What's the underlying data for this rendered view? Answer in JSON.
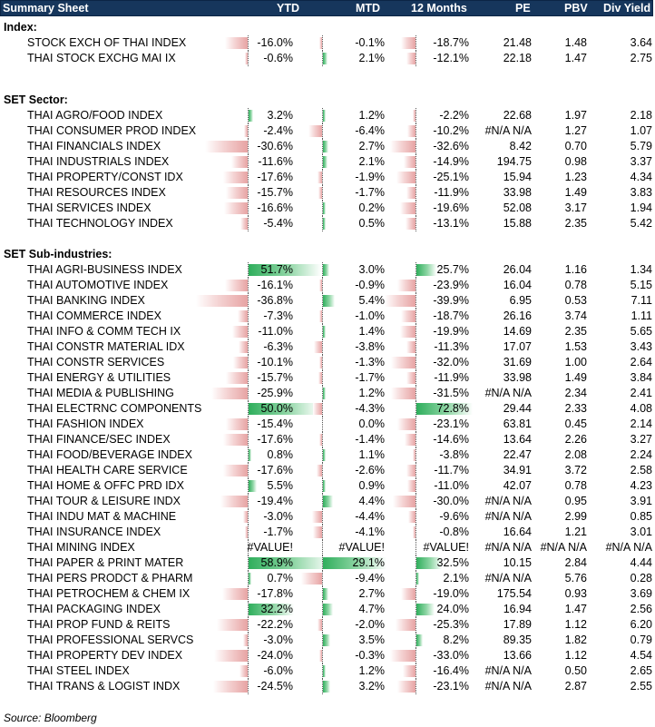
{
  "header": {
    "title": "Summary Sheet",
    "ytd": "YTD",
    "mtd": "MTD",
    "m12": "12 Months",
    "pe": "PE",
    "pbv": "PBV",
    "div": "Div Yield"
  },
  "sections": [
    {
      "title": "Index:",
      "rows": [
        {
          "name": "STOCK EXCH OF THAI INDEX",
          "ytd": "-16.0%",
          "ytd_v": -16.0,
          "mtd": "-0.1%",
          "mtd_v": -0.1,
          "m12": "-18.7%",
          "m12_v": -18.7,
          "pe": "21.48",
          "pbv": "1.48",
          "div": "3.64"
        },
        {
          "name": "THAI STOCK EXCHG MAI IX",
          "ytd": "-0.6%",
          "ytd_v": -0.6,
          "mtd": "2.1%",
          "mtd_v": 2.1,
          "m12": "-12.1%",
          "m12_v": -12.1,
          "pe": "22.18",
          "pbv": "1.47",
          "div": "2.75"
        }
      ]
    },
    {
      "title": "SET Sector:",
      "rows": [
        {
          "name": "THAI AGRO/FOOD INDEX",
          "ytd": "3.2%",
          "ytd_v": 3.2,
          "mtd": "1.2%",
          "mtd_v": 1.2,
          "m12": "-2.2%",
          "m12_v": -2.2,
          "pe": "22.68",
          "pbv": "1.97",
          "div": "2.18"
        },
        {
          "name": "THAI CONSUMER PROD INDEX",
          "ytd": "-2.4%",
          "ytd_v": -2.4,
          "mtd": "-6.4%",
          "mtd_v": -6.4,
          "m12": "-10.2%",
          "m12_v": -10.2,
          "pe": "#N/A N/A",
          "pbv": "1.27",
          "div": "1.07"
        },
        {
          "name": "THAI FINANCIALS INDEX",
          "ytd": "-30.6%",
          "ytd_v": -30.6,
          "mtd": "2.7%",
          "mtd_v": 2.7,
          "m12": "-32.6%",
          "m12_v": -32.6,
          "pe": "8.42",
          "pbv": "0.70",
          "div": "5.79"
        },
        {
          "name": "THAI INDUSTRIALS INDEX",
          "ytd": "-11.6%",
          "ytd_v": -11.6,
          "mtd": "2.1%",
          "mtd_v": 2.1,
          "m12": "-14.9%",
          "m12_v": -14.9,
          "pe": "194.75",
          "pbv": "0.98",
          "div": "3.37"
        },
        {
          "name": "THAI PROPERTY/CONST IDX",
          "ytd": "-17.6%",
          "ytd_v": -17.6,
          "mtd": "-1.9%",
          "mtd_v": -1.9,
          "m12": "-25.1%",
          "m12_v": -25.1,
          "pe": "15.94",
          "pbv": "1.23",
          "div": "4.34"
        },
        {
          "name": "THAI RESOURCES INDEX",
          "ytd": "-15.7%",
          "ytd_v": -15.7,
          "mtd": "-1.7%",
          "mtd_v": -1.7,
          "m12": "-11.9%",
          "m12_v": -11.9,
          "pe": "33.98",
          "pbv": "1.49",
          "div": "3.83"
        },
        {
          "name": "THAI SERVICES INDEX",
          "ytd": "-16.6%",
          "ytd_v": -16.6,
          "mtd": "0.2%",
          "mtd_v": 0.2,
          "m12": "-19.6%",
          "m12_v": -19.6,
          "pe": "52.08",
          "pbv": "3.17",
          "div": "1.94"
        },
        {
          "name": "THAI TECHNOLOGY INDEX",
          "ytd": "-5.4%",
          "ytd_v": -5.4,
          "mtd": "0.5%",
          "mtd_v": 0.5,
          "m12": "-13.1%",
          "m12_v": -13.1,
          "pe": "15.88",
          "pbv": "2.35",
          "div": "5.42"
        }
      ]
    },
    {
      "title": "SET Sub-industries:",
      "rows": [
        {
          "name": "THAI AGRI-BUSINESS INDEX",
          "ytd": "51.7%",
          "ytd_v": 51.7,
          "mtd": "3.0%",
          "mtd_v": 3.0,
          "m12": "25.7%",
          "m12_v": 25.7,
          "pe": "26.04",
          "pbv": "1.16",
          "div": "1.34"
        },
        {
          "name": "THAI AUTOMOTIVE INDEX",
          "ytd": "-16.1%",
          "ytd_v": -16.1,
          "mtd": "-0.9%",
          "mtd_v": -0.9,
          "m12": "-23.9%",
          "m12_v": -23.9,
          "pe": "16.04",
          "pbv": "0.78",
          "div": "5.15"
        },
        {
          "name": "THAI BANKING INDEX",
          "ytd": "-36.8%",
          "ytd_v": -36.8,
          "mtd": "5.4%",
          "mtd_v": 5.4,
          "m12": "-39.9%",
          "m12_v": -39.9,
          "pe": "6.95",
          "pbv": "0.53",
          "div": "7.11"
        },
        {
          "name": "THAI COMMERCE INDEX",
          "ytd": "-7.3%",
          "ytd_v": -7.3,
          "mtd": "-1.0%",
          "mtd_v": -1.0,
          "m12": "-18.7%",
          "m12_v": -18.7,
          "pe": "26.16",
          "pbv": "3.74",
          "div": "1.11"
        },
        {
          "name": "THAI INFO & COMM TECH IX",
          "ytd": "-11.0%",
          "ytd_v": -11.0,
          "mtd": "1.4%",
          "mtd_v": 1.4,
          "m12": "-19.9%",
          "m12_v": -19.9,
          "pe": "14.69",
          "pbv": "2.35",
          "div": "5.65"
        },
        {
          "name": "THAI CONSTR MATERIAL IDX",
          "ytd": "-6.3%",
          "ytd_v": -6.3,
          "mtd": "-3.8%",
          "mtd_v": -3.8,
          "m12": "-11.3%",
          "m12_v": -11.3,
          "pe": "17.07",
          "pbv": "1.53",
          "div": "3.43"
        },
        {
          "name": "THAI CONSTR SERVICES",
          "ytd": "-10.1%",
          "ytd_v": -10.1,
          "mtd": "-1.3%",
          "mtd_v": -1.3,
          "m12": "-32.0%",
          "m12_v": -32.0,
          "pe": "31.69",
          "pbv": "1.00",
          "div": "2.64"
        },
        {
          "name": "THAI ENERGY & UTILITIES",
          "ytd": "-15.7%",
          "ytd_v": -15.7,
          "mtd": "-1.7%",
          "mtd_v": -1.7,
          "m12": "-11.9%",
          "m12_v": -11.9,
          "pe": "33.98",
          "pbv": "1.49",
          "div": "3.84"
        },
        {
          "name": "THAI MEDIA & PUBLISHING",
          "ytd": "-25.9%",
          "ytd_v": -25.9,
          "mtd": "1.2%",
          "mtd_v": 1.2,
          "m12": "-31.5%",
          "m12_v": -31.5,
          "pe": "#N/A N/A",
          "pbv": "2.34",
          "div": "2.41"
        },
        {
          "name": "THAI ELECTRNC COMPONENTS",
          "ytd": "50.0%",
          "ytd_v": 50.0,
          "mtd": "-4.3%",
          "mtd_v": -4.3,
          "m12": "72.8%",
          "m12_v": 72.8,
          "pe": "29.44",
          "pbv": "2.33",
          "div": "4.08"
        },
        {
          "name": "THAI FASHION INDEX",
          "ytd": "-15.4%",
          "ytd_v": -15.4,
          "mtd": "0.0%",
          "mtd_v": 0.0,
          "m12": "-23.1%",
          "m12_v": -23.1,
          "pe": "63.81",
          "pbv": "0.45",
          "div": "2.14"
        },
        {
          "name": "THAI FINANCE/SEC INDEX",
          "ytd": "-17.6%",
          "ytd_v": -17.6,
          "mtd": "-1.4%",
          "mtd_v": -1.4,
          "m12": "-14.6%",
          "m12_v": -14.6,
          "pe": "13.64",
          "pbv": "2.26",
          "div": "3.27"
        },
        {
          "name": "THAI FOOD/BEVERAGE INDEX",
          "ytd": "0.8%",
          "ytd_v": 0.8,
          "mtd": "1.1%",
          "mtd_v": 1.1,
          "m12": "-3.8%",
          "m12_v": -3.8,
          "pe": "22.47",
          "pbv": "2.08",
          "div": "2.24"
        },
        {
          "name": "THAI HEALTH CARE SERVICE",
          "ytd": "-17.6%",
          "ytd_v": -17.6,
          "mtd": "-2.6%",
          "mtd_v": -2.6,
          "m12": "-11.7%",
          "m12_v": -11.7,
          "pe": "34.91",
          "pbv": "3.72",
          "div": "2.58"
        },
        {
          "name": "THAI HOME & OFFC PRD IDX",
          "ytd": "5.5%",
          "ytd_v": 5.5,
          "mtd": "0.9%",
          "mtd_v": 0.9,
          "m12": "-11.0%",
          "m12_v": -11.0,
          "pe": "42.07",
          "pbv": "0.78",
          "div": "4.23"
        },
        {
          "name": "THAI TOUR & LEISURE INDX",
          "ytd": "-19.4%",
          "ytd_v": -19.4,
          "mtd": "4.4%",
          "mtd_v": 4.4,
          "m12": "-30.0%",
          "m12_v": -30.0,
          "pe": "#N/A N/A",
          "pbv": "0.95",
          "div": "3.91"
        },
        {
          "name": "THAI INDU MAT & MACHINE",
          "ytd": "-3.0%",
          "ytd_v": -3.0,
          "mtd": "-4.4%",
          "mtd_v": -4.4,
          "m12": "-9.6%",
          "m12_v": -9.6,
          "pe": "#N/A N/A",
          "pbv": "2.99",
          "div": "0.85"
        },
        {
          "name": "THAI INSURANCE INDEX",
          "ytd": "-1.7%",
          "ytd_v": -1.7,
          "mtd": "-4.1%",
          "mtd_v": -4.1,
          "m12": "-0.8%",
          "m12_v": -0.8,
          "pe": "16.64",
          "pbv": "1.21",
          "div": "3.01"
        },
        {
          "name": "THAI MINING INDEX",
          "ytd": "#VALUE!",
          "ytd_v": 0,
          "mtd": "#VALUE!",
          "mtd_v": 0,
          "m12": "#VALUE!",
          "m12_v": 0,
          "pe": "#N/A N/A",
          "pbv": "#N/A N/A",
          "div": "#N/A N/A"
        },
        {
          "name": "THAI PAPER & PRINT MATER",
          "ytd": "58.9%",
          "ytd_v": 58.9,
          "mtd": "29.1%",
          "mtd_v": 29.1,
          "m12": "32.5%",
          "m12_v": 32.5,
          "pe": "10.15",
          "pbv": "2.84",
          "div": "4.44"
        },
        {
          "name": "THAI PERS PRODCT & PHARM",
          "ytd": "0.7%",
          "ytd_v": 0.7,
          "mtd": "-9.4%",
          "mtd_v": -9.4,
          "m12": "2.1%",
          "m12_v": 2.1,
          "pe": "#N/A N/A",
          "pbv": "5.76",
          "div": "0.28"
        },
        {
          "name": "THAI PETROCHEM & CHEM IX",
          "ytd": "-17.8%",
          "ytd_v": -17.8,
          "mtd": "2.7%",
          "mtd_v": 2.7,
          "m12": "-19.0%",
          "m12_v": -19.0,
          "pe": "175.54",
          "pbv": "0.93",
          "div": "3.69"
        },
        {
          "name": "THAI PACKAGING INDEX",
          "ytd": "32.2%",
          "ytd_v": 32.2,
          "mtd": "4.7%",
          "mtd_v": 4.7,
          "m12": "24.0%",
          "m12_v": 24.0,
          "pe": "16.94",
          "pbv": "1.47",
          "div": "2.56"
        },
        {
          "name": "THAI PROP FUND & REITS",
          "ytd": "-22.2%",
          "ytd_v": -22.2,
          "mtd": "-2.0%",
          "mtd_v": -2.0,
          "m12": "-25.3%",
          "m12_v": -25.3,
          "pe": "17.89",
          "pbv": "1.12",
          "div": "6.20"
        },
        {
          "name": "THAI PROFESSIONAL SERVCS",
          "ytd": "-3.0%",
          "ytd_v": -3.0,
          "mtd": "3.5%",
          "mtd_v": 3.5,
          "m12": "8.2%",
          "m12_v": 8.2,
          "pe": "89.35",
          "pbv": "1.82",
          "div": "0.79"
        },
        {
          "name": "THAI PROPERTY DEV INDEX",
          "ytd": "-24.0%",
          "ytd_v": -24.0,
          "mtd": "-0.3%",
          "mtd_v": -0.3,
          "m12": "-33.0%",
          "m12_v": -33.0,
          "pe": "13.66",
          "pbv": "1.12",
          "div": "4.54"
        },
        {
          "name": "THAI STEEL INDEX",
          "ytd": "-6.0%",
          "ytd_v": -6.0,
          "mtd": "1.2%",
          "mtd_v": 1.2,
          "m12": "-16.4%",
          "m12_v": -16.4,
          "pe": "#N/A N/A",
          "pbv": "0.50",
          "div": "2.65"
        },
        {
          "name": "THAI TRANS & LOGIST INDX",
          "ytd": "-24.5%",
          "ytd_v": -24.5,
          "mtd": "3.2%",
          "mtd_v": 3.2,
          "m12": "-23.1%",
          "m12_v": -23.1,
          "pe": "#N/A N/A",
          "pbv": "2.87",
          "div": "2.55"
        }
      ]
    }
  ],
  "footer": {
    "source": "Source: Bloomberg"
  },
  "colors": {
    "header_bg": "#16365c",
    "neg_bar": "#e7a3a3",
    "pos_bar": "#2fae5c"
  }
}
